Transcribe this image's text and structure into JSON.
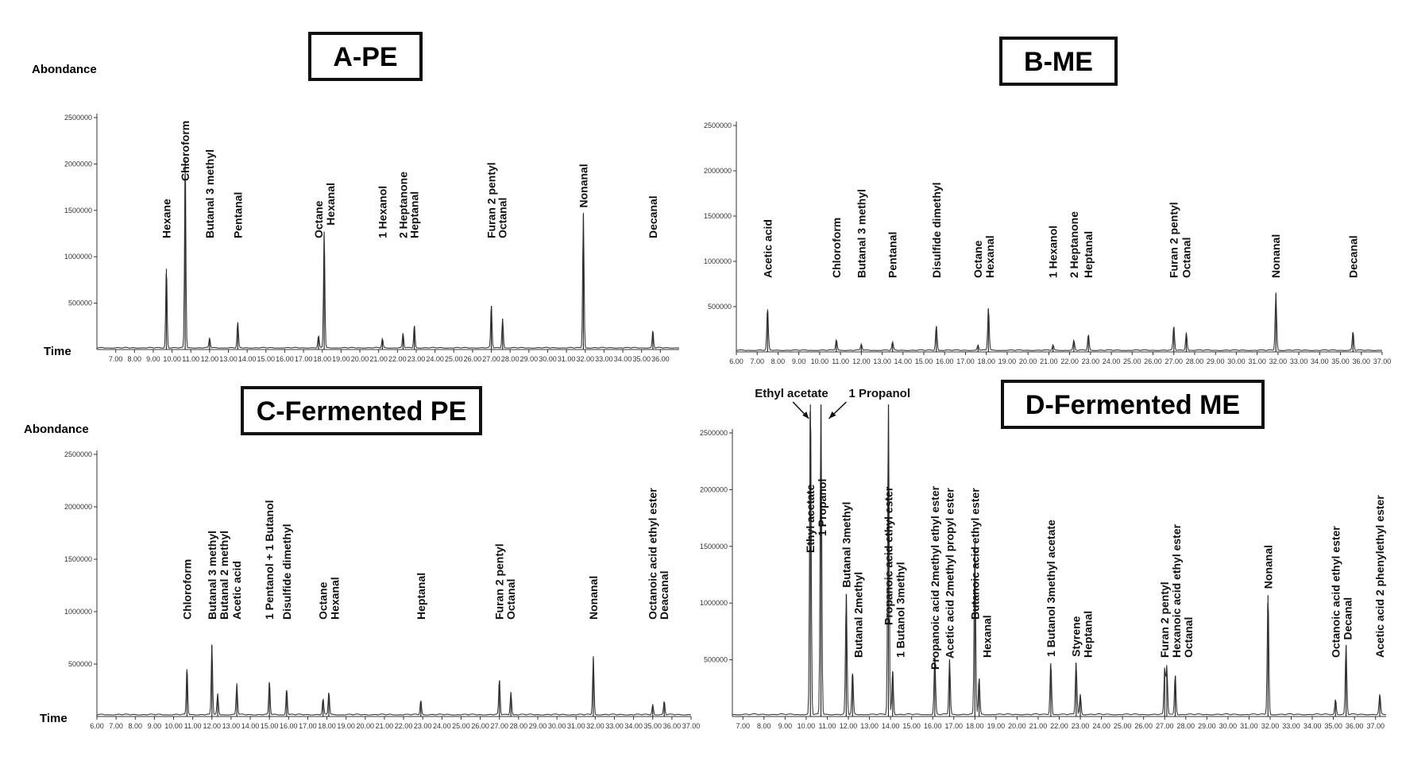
{
  "chart_data": [
    {
      "type": "line",
      "title": "A-PE",
      "ylabel": "Abondance",
      "xlabel": "Time",
      "ylim": [
        0,
        2500000
      ],
      "yticks": [
        500000,
        1000000,
        1500000,
        2000000,
        2500000
      ],
      "xlim": [
        6.0,
        37.0
      ],
      "xticks": [
        "7.00",
        "8.00",
        "9.00",
        "10.00",
        "11.00",
        "12.00",
        "13.00",
        "14.00",
        "15.00",
        "16.00",
        "17.00",
        "18.00",
        "19.00",
        "20.00",
        "21.00",
        "22.00",
        "23.00",
        "24.00",
        "25.00",
        "26.00",
        "27.00",
        "28.00",
        "29.00",
        "30.00",
        "31.00",
        "32.00",
        "33.00",
        "34.00",
        "35.00",
        "36.00"
      ],
      "peaks": [
        {
          "label": "Hexane",
          "x": 9.7,
          "y": 870000
        },
        {
          "label": "Chloroform",
          "x": 10.7,
          "y": 2050000
        },
        {
          "label": "Butanal 3 methyl",
          "x": 12.0,
          "y": 110000
        },
        {
          "label": "Pentanal",
          "x": 13.5,
          "y": 280000
        },
        {
          "label": "Octane",
          "x": 17.8,
          "y": 130000
        },
        {
          "label": "Hexanal",
          "x": 18.1,
          "y": 1270000
        },
        {
          "label": "1 Hexanol",
          "x": 21.2,
          "y": 100000
        },
        {
          "label": "2 Heptanone",
          "x": 22.3,
          "y": 160000
        },
        {
          "label": "Heptanal",
          "x": 22.9,
          "y": 250000
        },
        {
          "label": "Furan 2 pentyl",
          "x": 27.0,
          "y": 470000
        },
        {
          "label": "Octanal",
          "x": 27.6,
          "y": 320000
        },
        {
          "label": "Nonanal",
          "x": 31.9,
          "y": 1460000
        },
        {
          "label": "Decanal",
          "x": 35.6,
          "y": 190000
        }
      ]
    },
    {
      "type": "line",
      "title": "B-ME",
      "ylabel": "",
      "xlabel": "",
      "ylim": [
        0,
        2500000
      ],
      "yticks": [
        500000,
        1000000,
        1500000,
        2000000,
        2500000
      ],
      "xlim": [
        6.0,
        37.0
      ],
      "xticks": [
        "6.00",
        "7.00",
        "8.00",
        "9.00",
        "10.00",
        "11.00",
        "12.00",
        "13.00",
        "14.00",
        "15.00",
        "16.00",
        "17.00",
        "18.00",
        "19.00",
        "20.00",
        "21.00",
        "22.00",
        "23.00",
        "24.00",
        "25.00",
        "26.00",
        "27.00",
        "28.00",
        "29.00",
        "30.00",
        "31.00",
        "32.00",
        "33.00",
        "34.00",
        "35.00",
        "36.00",
        "37.00"
      ],
      "peaks": [
        {
          "label": "Acetic acid",
          "x": 7.5,
          "y": 470000
        },
        {
          "label": "Chloroform",
          "x": 10.8,
          "y": 120000
        },
        {
          "label": "Butanal 3 methyl",
          "x": 12.0,
          "y": 70000
        },
        {
          "label": "Pentanal",
          "x": 13.5,
          "y": 90000
        },
        {
          "label": "Disulfide dimethyl",
          "x": 15.6,
          "y": 280000
        },
        {
          "label": "Octane",
          "x": 17.6,
          "y": 60000
        },
        {
          "label": "Hexanal",
          "x": 18.1,
          "y": 480000
        },
        {
          "label": "1 Hexanol",
          "x": 21.2,
          "y": 60000
        },
        {
          "label": "2 Heptanone",
          "x": 22.2,
          "y": 110000
        },
        {
          "label": "Heptanal",
          "x": 22.9,
          "y": 180000
        },
        {
          "label": "Furan 2 pentyl",
          "x": 27.0,
          "y": 270000
        },
        {
          "label": "Octanal",
          "x": 27.6,
          "y": 200000
        },
        {
          "label": "Nonanal",
          "x": 31.9,
          "y": 640000
        },
        {
          "label": "Decanal",
          "x": 35.6,
          "y": 210000
        }
      ]
    },
    {
      "type": "line",
      "title": "C-Fermented PE",
      "ylabel": "Abondance",
      "xlabel": "Time",
      "ylim": [
        0,
        2500000
      ],
      "yticks": [
        500000,
        1000000,
        1500000,
        2000000,
        2500000
      ],
      "xlim": [
        6.0,
        37.0
      ],
      "xticks": [
        "6.00",
        "7.00",
        "8.00",
        "9.00",
        "10.00",
        "11.00",
        "12.00",
        "13.00",
        "14.00",
        "15.00",
        "16.00",
        "17.00",
        "18.00",
        "19.00",
        "20.00",
        "21.00",
        "22.00",
        "23.00",
        "24.00",
        "25.00",
        "26.00",
        "27.00",
        "28.00",
        "29.00",
        "30.00",
        "31.00",
        "32.00",
        "33.00",
        "34.00",
        "35.00",
        "36.00",
        "37.00"
      ],
      "peaks": [
        {
          "label": "Chloroform",
          "x": 10.7,
          "y": 450000
        },
        {
          "label": "Butanal 3 methyl",
          "x": 12.0,
          "y": 680000
        },
        {
          "label": "Butanal 2 methyl",
          "x": 12.3,
          "y": 200000
        },
        {
          "label": "Acetic acid",
          "x": 13.3,
          "y": 300000
        },
        {
          "label": "1 Pentanol + 1 Butanol",
          "x": 15.0,
          "y": 320000
        },
        {
          "label": "Disulfide dimethyl",
          "x": 15.9,
          "y": 250000
        },
        {
          "label": "Octane",
          "x": 17.8,
          "y": 150000
        },
        {
          "label": "Hexanal",
          "x": 18.1,
          "y": 220000
        },
        {
          "label": "Heptanal",
          "x": 22.9,
          "y": 140000
        },
        {
          "label": "Furan 2 pentyl",
          "x": 27.0,
          "y": 340000
        },
        {
          "label": "Octanal",
          "x": 27.6,
          "y": 220000
        },
        {
          "label": "Nonanal",
          "x": 31.9,
          "y": 560000
        },
        {
          "label": "Octanoic acid ethyl ester",
          "x": 35.0,
          "y": 100000
        },
        {
          "label": "Deacanal",
          "x": 35.6,
          "y": 130000
        }
      ]
    },
    {
      "type": "line",
      "title": "D-Fermented ME",
      "ylabel": "",
      "xlabel": "",
      "ylim": [
        0,
        2500000
      ],
      "yticks": [
        500000,
        1000000,
        1500000,
        2000000,
        2500000
      ],
      "xlim": [
        6.5,
        37.5
      ],
      "xticks": [
        "7.00",
        "8.00",
        "9.00",
        "10.00",
        "11.00",
        "12.00",
        "13.00",
        "14.00",
        "15.00",
        "16.00",
        "17.00",
        "18.00",
        "19.00",
        "20.00",
        "21.00",
        "22.00",
        "23.00",
        "24.00",
        "25.00",
        "26.00",
        "27.00",
        "28.00",
        "29.00",
        "30.00",
        "31.00",
        "32.00",
        "33.00",
        "34.00",
        "35.00",
        "36.00",
        "37.00"
      ],
      "callouts": [
        {
          "label": "Ethyl acetate",
          "x": 10.2
        },
        {
          "label": "1 Propanol",
          "x": 10.7
        }
      ],
      "peaks": [
        {
          "label": "Ethyl acetate",
          "x": 10.2,
          "y": 2900000
        },
        {
          "label": "1 Propanol",
          "x": 10.7,
          "y": 2900000
        },
        {
          "label": "Butanal 3methyl",
          "x": 11.9,
          "y": 1080000
        },
        {
          "label": "Butanal 2methyl",
          "x": 12.2,
          "y": 380000
        },
        {
          "label": "Propanoic acid ethyl ester",
          "x": 13.9,
          "y": 2850000
        },
        {
          "label": "1 Butanol 3methyl",
          "x": 14.1,
          "y": 400000
        },
        {
          "label": "Propanoic acid 2methyl ethyl ester",
          "x": 16.1,
          "y": 520000
        },
        {
          "label": "Acetic acid 2methyl propyl ester",
          "x": 16.8,
          "y": 490000
        },
        {
          "label": "Butanoic acid ethyl ester",
          "x": 18.0,
          "y": 1530000
        },
        {
          "label": "Hexanal",
          "x": 18.2,
          "y": 330000
        },
        {
          "label": "1 Butanol 3methyl acetate",
          "x": 21.6,
          "y": 470000
        },
        {
          "label": "Styrene",
          "x": 22.8,
          "y": 470000
        },
        {
          "label": "Heptanal",
          "x": 23.0,
          "y": 180000
        },
        {
          "label": "Furan 2 pentyl",
          "x": 27.0,
          "y": 410000
        },
        {
          "label": "Hexanoic acid ethyl ester",
          "x": 27.1,
          "y": 430000
        },
        {
          "label": "Octanal",
          "x": 27.5,
          "y": 360000
        },
        {
          "label": "Nonanal",
          "x": 31.9,
          "y": 1070000
        },
        {
          "label": "Octanoic acid ethyl ester",
          "x": 35.1,
          "y": 140000
        },
        {
          "label": "Decanal",
          "x": 35.6,
          "y": 620000
        },
        {
          "label": "Acetic acid 2 phenylethyl ester",
          "x": 37.2,
          "y": 180000
        }
      ]
    }
  ]
}
